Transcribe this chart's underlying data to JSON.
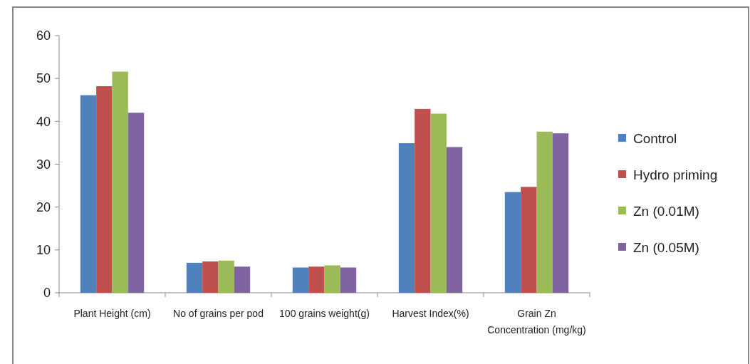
{
  "chart_data": {
    "type": "bar",
    "categories": [
      "Plant Height (cm)",
      "No of grains per pod",
      "100 grains weight(g)",
      "Harvest Index(%)",
      "Grain Zn Concentration (mg/kg)"
    ],
    "series": [
      {
        "name": "Control",
        "color": "#4f81bd",
        "values": [
          46.1,
          7.0,
          5.9,
          34.9,
          23.5
        ]
      },
      {
        "name": "Hydro priming",
        "color": "#c0504d",
        "values": [
          48.2,
          7.3,
          6.1,
          42.9,
          24.7
        ]
      },
      {
        "name": "Zn (0.01M)",
        "color": "#9bbb59",
        "values": [
          51.6,
          7.5,
          6.4,
          41.8,
          37.6
        ]
      },
      {
        "name": "Zn (0.05M)",
        "color": "#8064a2",
        "values": [
          42.0,
          6.1,
          5.9,
          34.0,
          37.2
        ]
      }
    ],
    "ylim": [
      0,
      60
    ],
    "yticks": [
      0,
      10,
      20,
      30,
      40,
      50,
      60
    ],
    "legend": "right"
  }
}
